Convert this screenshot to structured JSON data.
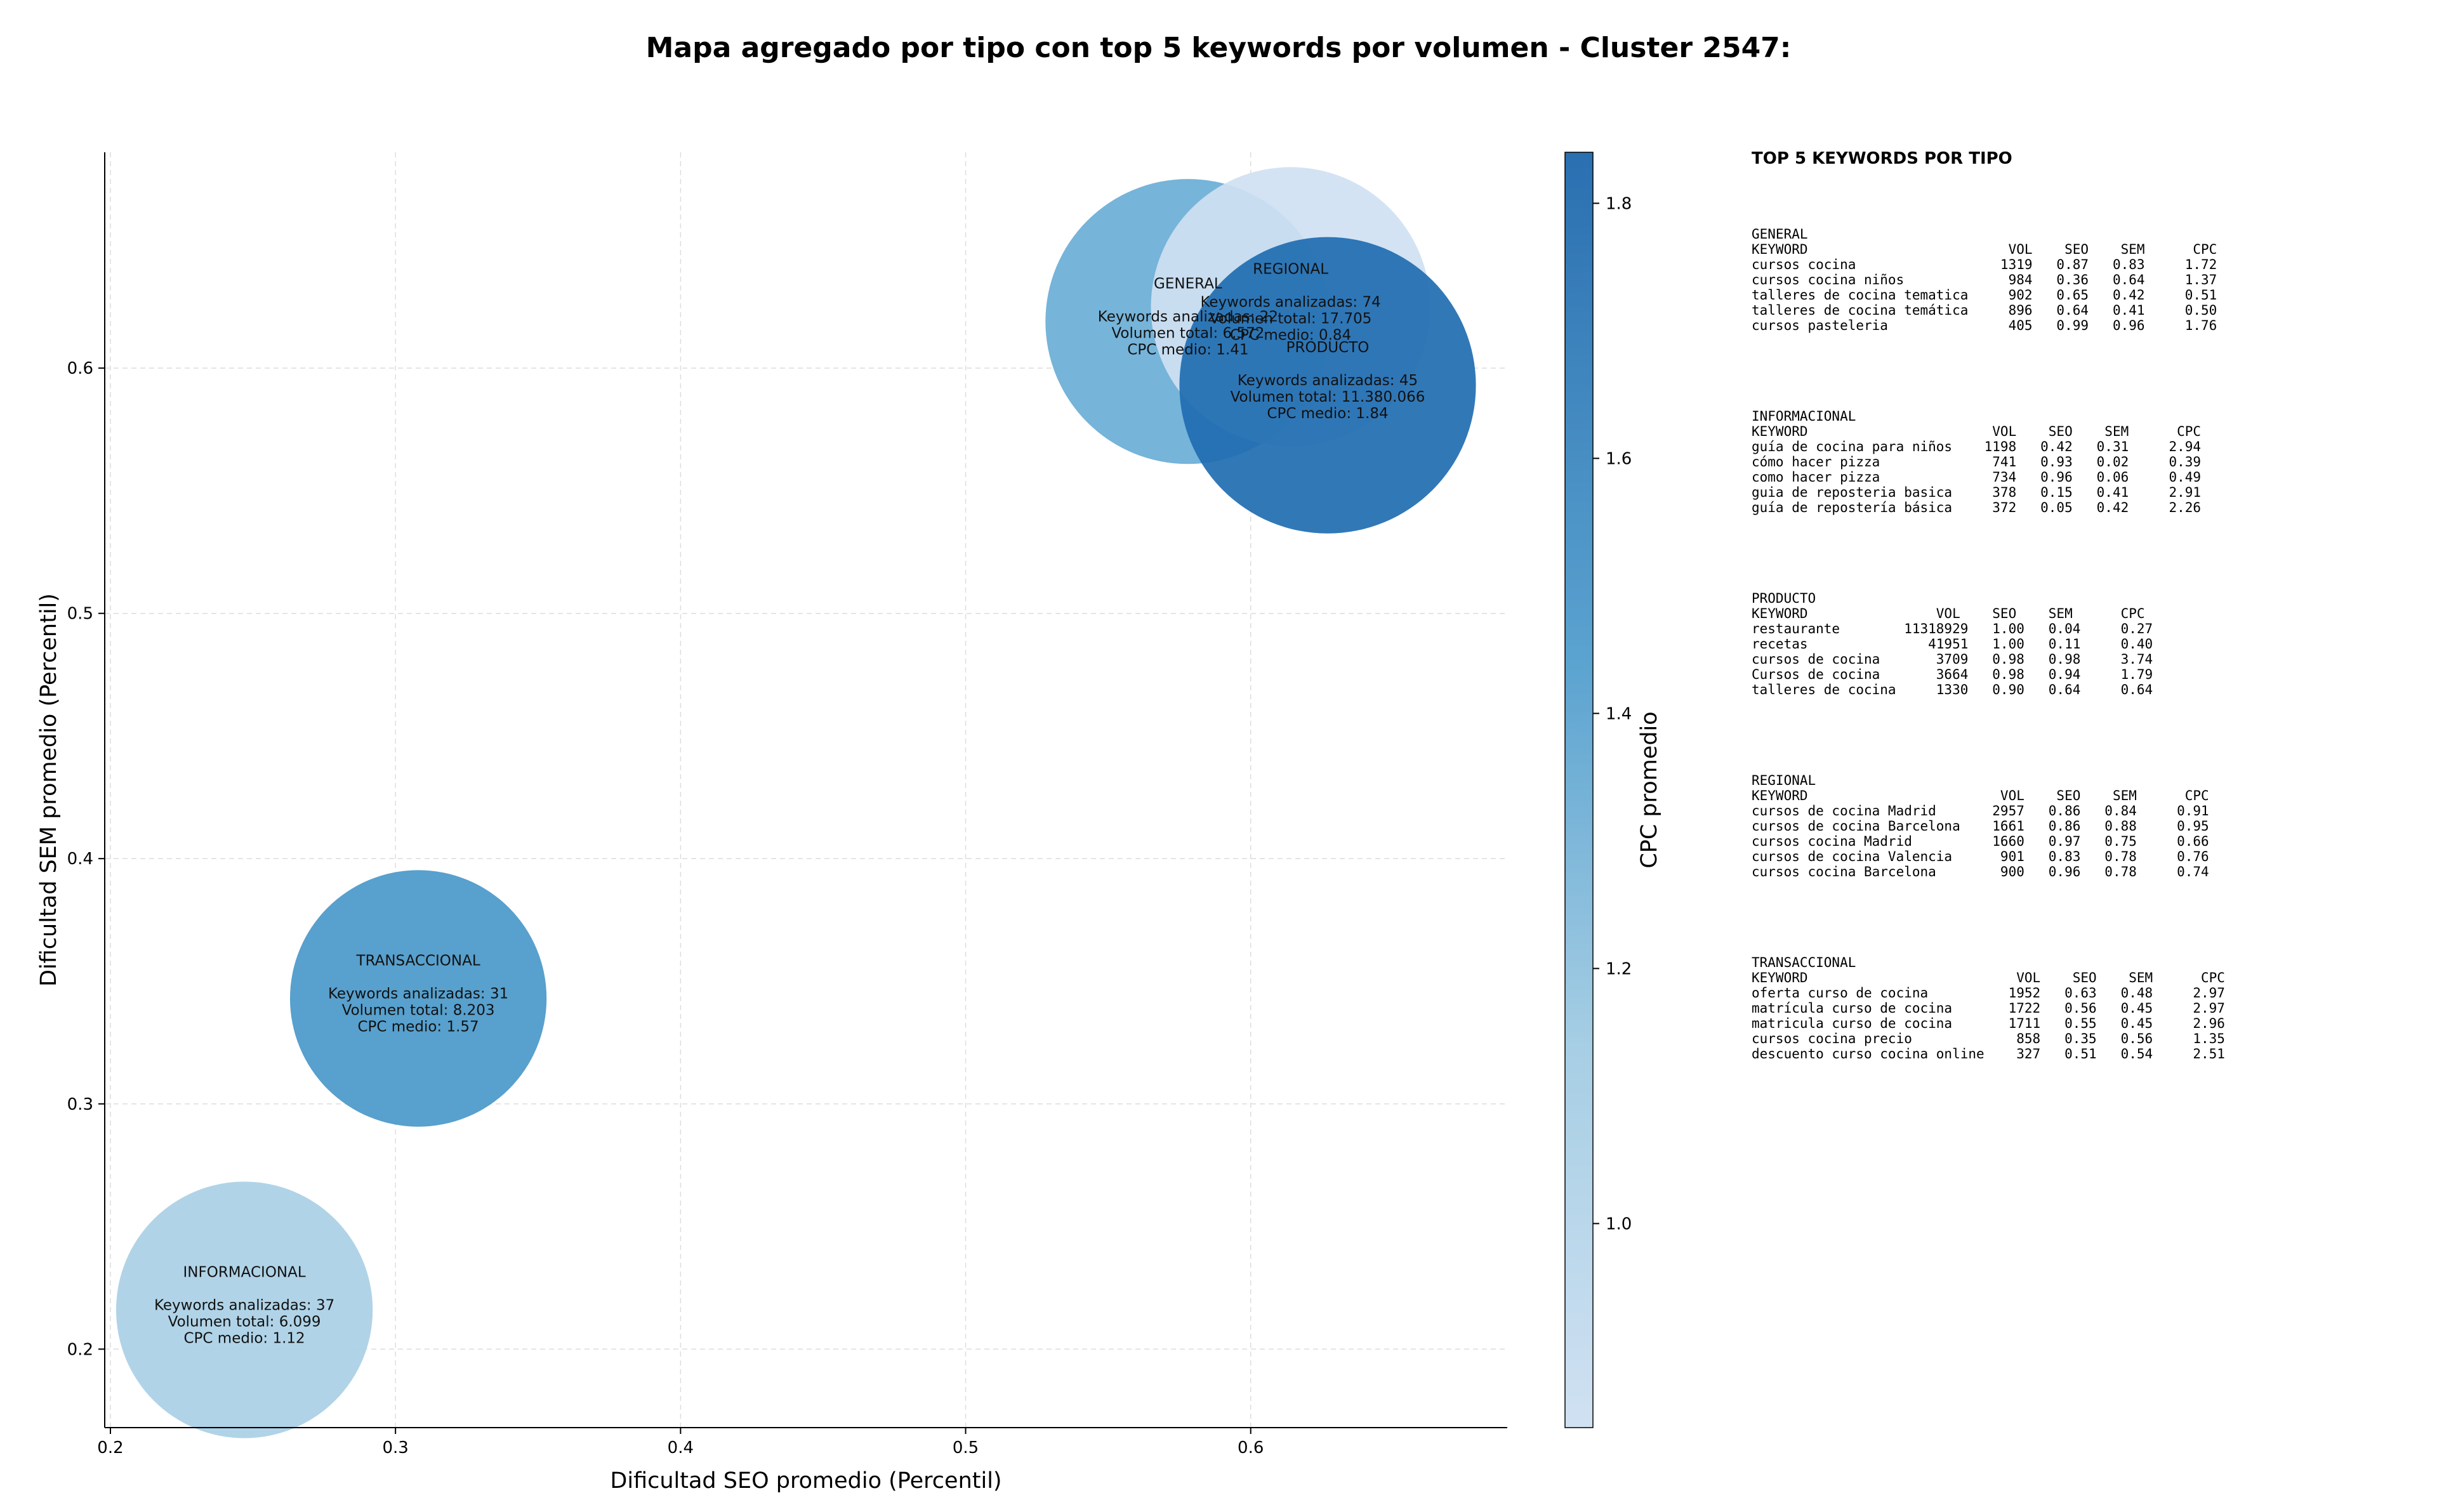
{
  "title": "Mapa agregado por tipo con top 5 keywords por volumen - Cluster 2547:",
  "chart_data": {
    "type": "scatter",
    "title": "Mapa agregado por tipo con top 5 keywords por volumen - Cluster 2547:",
    "xlabel": "Dificultad SEO promedio (Percentil)",
    "ylabel": "Dificultad SEM promedio (Percentil)",
    "xlim": [
      0.198,
      0.69
    ],
    "ylim": [
      0.168,
      0.688
    ],
    "xticks": [
      "0.2",
      "0.3",
      "0.4",
      "0.5",
      "0.6"
    ],
    "yticks": [
      "0.2",
      "0.3",
      "0.4",
      "0.5",
      "0.6"
    ],
    "grid": true,
    "colorbar": {
      "label": "CPC promedio",
      "range": [
        0.84,
        1.84
      ],
      "ticks": [
        "1.0",
        "1.2",
        "1.4",
        "1.6",
        "1.8"
      ],
      "colormap": "Blues"
    },
    "bubbles": [
      {
        "name": "GENERAL",
        "x": 0.578,
        "y": 0.619,
        "radius": 0.05,
        "cpc": 1.41,
        "color": "#6aaed6",
        "label_title": "GENERAL",
        "line1": "Keywords analizadas: 22",
        "line2": "Volumen total: 6.572",
        "line3": "CPC medio: 1.41"
      },
      {
        "name": "REGIONAL",
        "x": 0.614,
        "y": 0.625,
        "radius": 0.049,
        "cpc": 0.84,
        "color": "#cfe1f2",
        "label_title": "REGIONAL",
        "line1": "Keywords analizadas: 74",
        "line2": "Volumen total: 17.705",
        "line3": "CPC medio: 0.84"
      },
      {
        "name": "PRODUCTO",
        "x": 0.627,
        "y": 0.593,
        "radius": 0.052,
        "cpc": 1.84,
        "color": "#1f6cb1",
        "label_title": "PRODUCTO",
        "line1": "Keywords analizadas: 45",
        "line2": "Volumen total: 11.380.066",
        "line3": "CPC medio: 1.84"
      },
      {
        "name": "TRANSACCIONAL",
        "x": 0.308,
        "y": 0.343,
        "radius": 0.045,
        "cpc": 1.57,
        "color": "#4a98c9",
        "label_title": "TRANSACCIONAL",
        "line1": "Keywords analizadas: 31",
        "line2": "Volumen total: 8.203",
        "line3": "CPC medio: 1.57"
      },
      {
        "name": "INFORMACIONAL",
        "x": 0.247,
        "y": 0.216,
        "radius": 0.045,
        "cpc": 1.12,
        "color": "#a9cfe5",
        "label_title": "INFORMACIONAL",
        "line1": "Keywords analizadas: 37",
        "line2": "Volumen total: 6.099",
        "line3": "CPC medio: 1.12"
      }
    ]
  },
  "panel": {
    "title": "TOP 5 KEYWORDS POR TIPO",
    "blocks": [
      {
        "lines": [
          "GENERAL",
          "KEYWORD                         VOL    SEO    SEM      CPC",
          "cursos cocina                  1319   0.87   0.83     1.72",
          "cursos cocina niños             984   0.36   0.64     1.37",
          "talleres de cocina tematica     902   0.65   0.42     0.51",
          "talleres de cocina temática     896   0.64   0.41     0.50",
          "cursos pasteleria               405   0.99   0.96     1.76"
        ]
      },
      {
        "lines": [
          "INFORMACIONAL",
          "KEYWORD                       VOL    SEO    SEM      CPC",
          "guía de cocina para niños    1198   0.42   0.31     2.94",
          "cómo hacer pizza              741   0.93   0.02     0.39",
          "como hacer pizza              734   0.96   0.06     0.49",
          "guia de reposteria basica     378   0.15   0.41     2.91",
          "guía de repostería básica     372   0.05   0.42     2.26"
        ]
      },
      {
        "lines": [
          "PRODUCTO",
          "KEYWORD                VOL    SEO    SEM      CPC",
          "restaurante        11318929   1.00   0.04     0.27",
          "recetas               41951   1.00   0.11     0.40",
          "cursos de cocina       3709   0.98   0.98     3.74",
          "Cursos de cocina       3664   0.98   0.94     1.79",
          "talleres de cocina     1330   0.90   0.64     0.64"
        ]
      },
      {
        "lines": [
          "REGIONAL",
          "KEYWORD                        VOL    SEO    SEM      CPC",
          "cursos de cocina Madrid       2957   0.86   0.84     0.91",
          "cursos de cocina Barcelona    1661   0.86   0.88     0.95",
          "cursos cocina Madrid          1660   0.97   0.75     0.66",
          "cursos de cocina Valencia      901   0.83   0.78     0.76",
          "cursos cocina Barcelona        900   0.96   0.78     0.74"
        ]
      },
      {
        "lines": [
          "TRANSACCIONAL",
          "KEYWORD                          VOL    SEO    SEM      CPC",
          "oferta curso de cocina          1952   0.63   0.48     2.97",
          "matrícula curso de cocina       1722   0.56   0.45     2.97",
          "matricula curso de cocina       1711   0.55   0.45     2.96",
          "cursos cocina precio             858   0.35   0.56     1.35",
          "descuento curso cocina online    327   0.51   0.54     2.51"
        ]
      }
    ]
  }
}
